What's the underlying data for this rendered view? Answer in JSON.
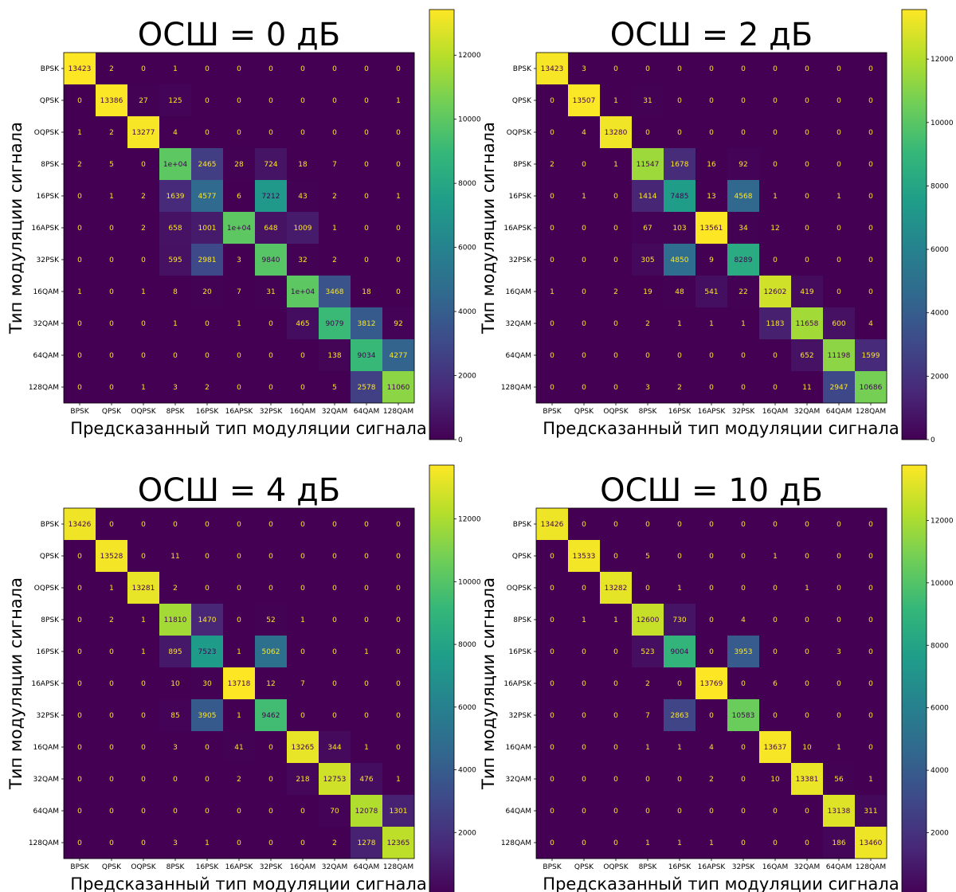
{
  "colors": {
    "viridis": [
      "#440154",
      "#482878",
      "#3e4989",
      "#31688e",
      "#26828e",
      "#1f9e89",
      "#35b779",
      "#6ece58",
      "#b5de2b",
      "#fde725"
    ],
    "text_on_dark": "#fde725",
    "text_on_light": "#440154"
  },
  "chart_data": [
    {
      "type": "heatmap",
      "title": "ОСШ = 0 дБ",
      "xlabel": "Предсказанный тип модуляции сигнала",
      "ylabel": "Тип модуляции сигнала",
      "labels": [
        "BPSK",
        "QPSK",
        "OQPSK",
        "8PSK",
        "16PSK",
        "16APSK",
        "32PSK",
        "16QAM",
        "32QAM",
        "64QAM",
        "128QAM"
      ],
      "values": [
        [
          13423,
          2,
          0,
          1,
          0,
          0,
          0,
          0,
          0,
          0,
          0
        ],
        [
          0,
          13386,
          27,
          125,
          0,
          0,
          0,
          0,
          0,
          0,
          1
        ],
        [
          1,
          2,
          13277,
          4,
          0,
          0,
          0,
          0,
          0,
          0,
          0
        ],
        [
          2,
          5,
          0,
          10000,
          2465,
          28,
          724,
          18,
          7,
          0,
          0
        ],
        [
          0,
          1,
          2,
          1639,
          4577,
          6,
          7212,
          43,
          2,
          0,
          1
        ],
        [
          0,
          0,
          2,
          658,
          1001,
          10000,
          648,
          1009,
          1,
          0,
          0
        ],
        [
          0,
          0,
          0,
          595,
          2981,
          3,
          9840,
          32,
          2,
          0,
          0
        ],
        [
          1,
          0,
          1,
          8,
          20,
          7,
          31,
          10000,
          3468,
          18,
          0
        ],
        [
          0,
          0,
          0,
          1,
          0,
          1,
          0,
          465,
          9079,
          3812,
          92
        ],
        [
          0,
          0,
          0,
          0,
          0,
          0,
          0,
          0,
          138,
          9034,
          4277
        ],
        [
          0,
          0,
          1,
          3,
          2,
          0,
          0,
          0,
          5,
          2578,
          11060
        ]
      ],
      "cell_text": [
        [
          "13423",
          "2",
          "0",
          "1",
          "0",
          "0",
          "0",
          "0",
          "0",
          "0",
          "0"
        ],
        [
          "0",
          "13386",
          "27",
          "125",
          "0",
          "0",
          "0",
          "0",
          "0",
          "0",
          "1"
        ],
        [
          "1",
          "2",
          "13277",
          "4",
          "0",
          "0",
          "0",
          "0",
          "0",
          "0",
          "0"
        ],
        [
          "2",
          "5",
          "0",
          "1e+04",
          "2465",
          "28",
          "724",
          "18",
          "7",
          "0",
          "0"
        ],
        [
          "0",
          "1",
          "2",
          "1639",
          "4577",
          "6",
          "7212",
          "43",
          "2",
          "0",
          "1"
        ],
        [
          "0",
          "0",
          "2",
          "658",
          "1001",
          "1e+04",
          "648",
          "1009",
          "1",
          "0",
          "0"
        ],
        [
          "0",
          "0",
          "0",
          "595",
          "2981",
          "3",
          "9840",
          "32",
          "2",
          "0",
          "0"
        ],
        [
          "1",
          "0",
          "1",
          "8",
          "20",
          "7",
          "31",
          "1e+04",
          "3468",
          "18",
          "0"
        ],
        [
          "0",
          "0",
          "0",
          "1",
          "0",
          "1",
          "0",
          "465",
          "9079",
          "3812",
          "92"
        ],
        [
          "0",
          "0",
          "0",
          "0",
          "0",
          "0",
          "0",
          "0",
          "138",
          "9034",
          "4277"
        ],
        [
          "0",
          "0",
          "1",
          "3",
          "2",
          "0",
          "0",
          "0",
          "5",
          "2578",
          "11060"
        ]
      ],
      "colorbar": {
        "min": 0,
        "max": 13423,
        "ticks": [
          0,
          2000,
          4000,
          6000,
          8000,
          10000,
          12000
        ]
      }
    },
    {
      "type": "heatmap",
      "title": "ОСШ = 2 дБ",
      "xlabel": "Предсказанный тип модуляции сигнала",
      "ylabel": "Тип модуляции сигнала",
      "labels": [
        "BPSK",
        "QPSK",
        "OQPSK",
        "8PSK",
        "16PSK",
        "16APSK",
        "32PSK",
        "16QAM",
        "32QAM",
        "64QAM",
        "128QAM"
      ],
      "values": [
        [
          13423,
          3,
          0,
          0,
          0,
          0,
          0,
          0,
          0,
          0,
          0
        ],
        [
          0,
          13507,
          1,
          31,
          0,
          0,
          0,
          0,
          0,
          0,
          0
        ],
        [
          0,
          4,
          13280,
          0,
          0,
          0,
          0,
          0,
          0,
          0,
          0
        ],
        [
          2,
          0,
          1,
          11547,
          1678,
          16,
          92,
          0,
          0,
          0,
          0
        ],
        [
          0,
          1,
          0,
          1414,
          7485,
          13,
          4568,
          1,
          0,
          1,
          0
        ],
        [
          0,
          0,
          0,
          67,
          103,
          13561,
          34,
          12,
          0,
          0,
          0
        ],
        [
          0,
          0,
          0,
          305,
          4850,
          9,
          8289,
          0,
          0,
          0,
          0
        ],
        [
          1,
          0,
          2,
          19,
          48,
          541,
          22,
          12602,
          419,
          0,
          0
        ],
        [
          0,
          0,
          0,
          2,
          1,
          1,
          1,
          1183,
          11658,
          600,
          4
        ],
        [
          0,
          0,
          0,
          0,
          0,
          0,
          0,
          0,
          652,
          11198,
          1599
        ],
        [
          0,
          0,
          0,
          3,
          2,
          0,
          0,
          0,
          11,
          2947,
          10686
        ]
      ],
      "cell_text": [
        [
          "13423",
          "3",
          "0",
          "0",
          "0",
          "0",
          "0",
          "0",
          "0",
          "0",
          "0"
        ],
        [
          "0",
          "13507",
          "1",
          "31",
          "0",
          "0",
          "0",
          "0",
          "0",
          "0",
          "0"
        ],
        [
          "0",
          "4",
          "13280",
          "0",
          "0",
          "0",
          "0",
          "0",
          "0",
          "0",
          "0"
        ],
        [
          "2",
          "0",
          "1",
          "11547",
          "1678",
          "16",
          "92",
          "0",
          "0",
          "0",
          "0"
        ],
        [
          "0",
          "1",
          "0",
          "1414",
          "7485",
          "13",
          "4568",
          "1",
          "0",
          "1",
          "0"
        ],
        [
          "0",
          "0",
          "0",
          "67",
          "103",
          "13561",
          "34",
          "12",
          "0",
          "0",
          "0"
        ],
        [
          "0",
          "0",
          "0",
          "305",
          "4850",
          "9",
          "8289",
          "0",
          "0",
          "0",
          "0"
        ],
        [
          "1",
          "0",
          "2",
          "19",
          "48",
          "541",
          "22",
          "12602",
          "419",
          "0",
          "0"
        ],
        [
          "0",
          "0",
          "0",
          "2",
          "1",
          "1",
          "1",
          "1183",
          "11658",
          "600",
          "4"
        ],
        [
          "0",
          "0",
          "0",
          "0",
          "0",
          "0",
          "0",
          "0",
          "652",
          "11198",
          "1599"
        ],
        [
          "0",
          "0",
          "0",
          "3",
          "2",
          "0",
          "0",
          "0",
          "11",
          "2947",
          "10686"
        ]
      ],
      "colorbar": {
        "min": 0,
        "max": 13561,
        "ticks": [
          0,
          2000,
          4000,
          6000,
          8000,
          10000,
          12000
        ]
      }
    },
    {
      "type": "heatmap",
      "title": "ОСШ = 4 дБ",
      "xlabel": "Предсказанный тип модуляции сигнала",
      "ylabel": "Тип модуляции сигнала",
      "labels": [
        "BPSK",
        "QPSK",
        "OQPSK",
        "8PSK",
        "16PSK",
        "16APSK",
        "32PSK",
        "16QAM",
        "32QAM",
        "64QAM",
        "128QAM"
      ],
      "values": [
        [
          13426,
          0,
          0,
          0,
          0,
          0,
          0,
          0,
          0,
          0,
          0
        ],
        [
          0,
          13528,
          0,
          11,
          0,
          0,
          0,
          0,
          0,
          0,
          0
        ],
        [
          0,
          1,
          13281,
          2,
          0,
          0,
          0,
          0,
          0,
          0,
          0
        ],
        [
          0,
          2,
          1,
          11810,
          1470,
          0,
          52,
          1,
          0,
          0,
          0
        ],
        [
          0,
          0,
          1,
          895,
          7523,
          1,
          5062,
          0,
          0,
          1,
          0
        ],
        [
          0,
          0,
          0,
          10,
          30,
          13718,
          12,
          7,
          0,
          0,
          0
        ],
        [
          0,
          0,
          0,
          85,
          3905,
          1,
          9462,
          0,
          0,
          0,
          0
        ],
        [
          0,
          0,
          0,
          3,
          0,
          41,
          0,
          13265,
          344,
          1,
          0
        ],
        [
          0,
          0,
          0,
          0,
          0,
          2,
          0,
          218,
          12753,
          476,
          1
        ],
        [
          0,
          0,
          0,
          0,
          0,
          0,
          0,
          0,
          70,
          12078,
          1301
        ],
        [
          0,
          0,
          0,
          3,
          1,
          0,
          0,
          0,
          2,
          1278,
          12365
        ]
      ],
      "cell_text": [
        [
          "13426",
          "0",
          "0",
          "0",
          "0",
          "0",
          "0",
          "0",
          "0",
          "0",
          "0"
        ],
        [
          "0",
          "13528",
          "0",
          "11",
          "0",
          "0",
          "0",
          "0",
          "0",
          "0",
          "0"
        ],
        [
          "0",
          "1",
          "13281",
          "2",
          "0",
          "0",
          "0",
          "0",
          "0",
          "0",
          "0"
        ],
        [
          "0",
          "2",
          "1",
          "11810",
          "1470",
          "0",
          "52",
          "1",
          "0",
          "0",
          "0"
        ],
        [
          "0",
          "0",
          "1",
          "895",
          "7523",
          "1",
          "5062",
          "0",
          "0",
          "1",
          "0"
        ],
        [
          "0",
          "0",
          "0",
          "10",
          "30",
          "13718",
          "12",
          "7",
          "0",
          "0",
          "0"
        ],
        [
          "0",
          "0",
          "0",
          "85",
          "3905",
          "1",
          "9462",
          "0",
          "0",
          "0",
          "0"
        ],
        [
          "0",
          "0",
          "0",
          "3",
          "0",
          "41",
          "0",
          "13265",
          "344",
          "1",
          "0"
        ],
        [
          "0",
          "0",
          "0",
          "0",
          "0",
          "2",
          "0",
          "218",
          "12753",
          "476",
          "1"
        ],
        [
          "0",
          "0",
          "0",
          "0",
          "0",
          "0",
          "0",
          "0",
          "70",
          "12078",
          "1301"
        ],
        [
          "0",
          "0",
          "0",
          "3",
          "1",
          "0",
          "0",
          "0",
          "2",
          "1278",
          "12365"
        ]
      ],
      "colorbar": {
        "min": 0,
        "max": 13718,
        "ticks": [
          0,
          2000,
          4000,
          6000,
          8000,
          10000,
          12000
        ]
      }
    },
    {
      "type": "heatmap",
      "title": "ОСШ = 10 дБ",
      "xlabel": "Предсказанный тип модуляции сигнала",
      "ylabel": "Тип модуляции сигнала",
      "labels": [
        "BPSK",
        "QPSK",
        "OQPSK",
        "8PSK",
        "16PSK",
        "16APSK",
        "32PSK",
        "16QAM",
        "32QAM",
        "64QAM",
        "128QAM"
      ],
      "values": [
        [
          13426,
          0,
          0,
          0,
          0,
          0,
          0,
          0,
          0,
          0,
          0
        ],
        [
          0,
          13533,
          0,
          5,
          0,
          0,
          0,
          1,
          0,
          0,
          0
        ],
        [
          0,
          0,
          13282,
          0,
          1,
          0,
          0,
          0,
          1,
          0,
          0
        ],
        [
          0,
          1,
          1,
          12600,
          730,
          0,
          4,
          0,
          0,
          0,
          0
        ],
        [
          0,
          0,
          0,
          523,
          9004,
          0,
          3953,
          0,
          0,
          3,
          0
        ],
        [
          0,
          0,
          0,
          2,
          0,
          13769,
          0,
          6,
          0,
          0,
          0
        ],
        [
          0,
          0,
          0,
          7,
          2863,
          0,
          10583,
          0,
          0,
          0,
          0
        ],
        [
          0,
          0,
          0,
          1,
          1,
          4,
          0,
          13637,
          10,
          1,
          0
        ],
        [
          0,
          0,
          0,
          0,
          0,
          2,
          0,
          10,
          13381,
          56,
          1
        ],
        [
          0,
          0,
          0,
          0,
          0,
          0,
          0,
          0,
          0,
          13138,
          311
        ],
        [
          0,
          0,
          0,
          1,
          1,
          1,
          0,
          0,
          0,
          186,
          13460
        ]
      ],
      "cell_text": [
        [
          "13426",
          "0",
          "0",
          "0",
          "0",
          "0",
          "0",
          "0",
          "0",
          "0",
          "0"
        ],
        [
          "0",
          "13533",
          "0",
          "5",
          "0",
          "0",
          "0",
          "1",
          "0",
          "0",
          "0"
        ],
        [
          "0",
          "0",
          "13282",
          "0",
          "1",
          "0",
          "0",
          "0",
          "1",
          "0",
          "0"
        ],
        [
          "0",
          "1",
          "1",
          "12600",
          "730",
          "0",
          "4",
          "0",
          "0",
          "0",
          "0"
        ],
        [
          "0",
          "0",
          "0",
          "523",
          "9004",
          "0",
          "3953",
          "0",
          "0",
          "3",
          "0"
        ],
        [
          "0",
          "0",
          "0",
          "2",
          "0",
          "13769",
          "0",
          "6",
          "0",
          "0",
          "0"
        ],
        [
          "0",
          "0",
          "0",
          "7",
          "2863",
          "0",
          "10583",
          "0",
          "0",
          "0",
          "0"
        ],
        [
          "0",
          "0",
          "0",
          "1",
          "1",
          "4",
          "0",
          "13637",
          "10",
          "1",
          "0"
        ],
        [
          "0",
          "0",
          "0",
          "0",
          "0",
          "2",
          "0",
          "10",
          "13381",
          "56",
          "1"
        ],
        [
          "0",
          "0",
          "0",
          "0",
          "0",
          "0",
          "0",
          "0",
          "0",
          "13138",
          "311"
        ],
        [
          "0",
          "0",
          "0",
          "1",
          "1",
          "1",
          "0",
          "0",
          "0",
          "186",
          "13460"
        ]
      ],
      "colorbar": {
        "min": 0,
        "max": 13769,
        "ticks": [
          0,
          2000,
          4000,
          6000,
          8000,
          10000,
          12000
        ]
      }
    }
  ]
}
